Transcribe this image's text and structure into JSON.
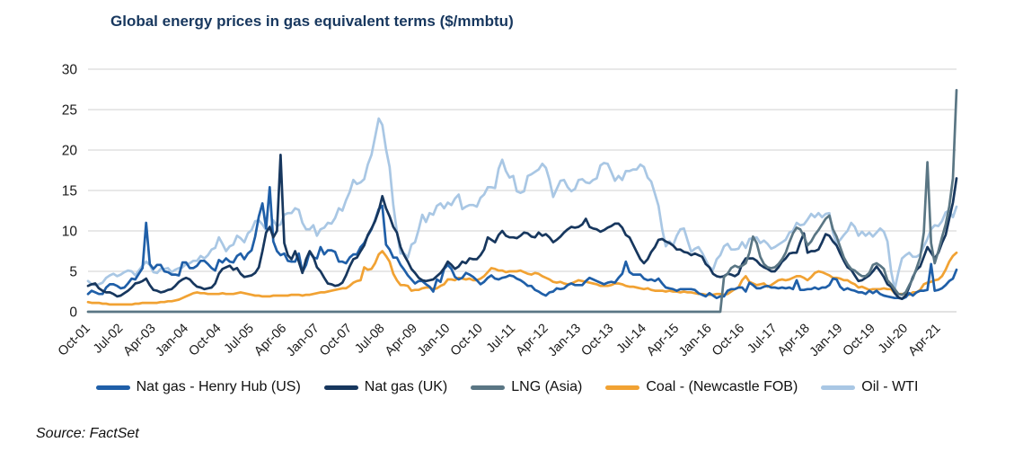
{
  "title": "Global energy prices in gas equivalent terms ($/mmbtu)",
  "source": "Source: FactSet",
  "colors": {
    "title": "#17375e",
    "gridline": "#d9d9d9",
    "axis_text": "#1a1a1a"
  },
  "chart_data": {
    "type": "line",
    "title": "Global energy prices in gas equivalent terms ($/mmbtu)",
    "xlabel": "",
    "ylabel": "",
    "ylim": [
      0,
      30
    ],
    "yticks": [
      0,
      5,
      10,
      15,
      20,
      25,
      30
    ],
    "grid": true,
    "legend_position": "bottom",
    "x_start_month": "2001-10",
    "x_frequency": "monthly",
    "x_tick_labels": [
      "Oct-01",
      "Jul-02",
      "Apr-03",
      "Jan-04",
      "Oct-04",
      "Jul-05",
      "Apr-06",
      "Jan-07",
      "Oct-07",
      "Jul-08",
      "Apr-09",
      "Jan-10",
      "Oct-10",
      "Jul-11",
      "Apr-12",
      "Jan-13",
      "Oct-13",
      "Jul-14",
      "Apr-15",
      "Jan-16",
      "Oct-16",
      "Jul-17",
      "Apr-18",
      "Jan-19",
      "Oct-19",
      "Jul-20",
      "Apr-21"
    ],
    "x_tick_every": 9,
    "series": [
      {
        "name": "Nat gas - Henry Hub (US)",
        "color": "#1f5fa8",
        "values": [
          2.2,
          2.6,
          2.4,
          2.2,
          2.2,
          3.0,
          3.4,
          3.4,
          3.2,
          2.9,
          3.0,
          3.5,
          4.1,
          4.0,
          4.7,
          5.4,
          11.0,
          5.9,
          5.3,
          5.8,
          5.8,
          5.0,
          4.9,
          4.6,
          4.6,
          4.5,
          6.1,
          6.1,
          5.4,
          5.4,
          5.7,
          6.3,
          6.3,
          5.9,
          5.4,
          5.1,
          6.4,
          6.1,
          6.6,
          6.2,
          6.1,
          6.9,
          7.2,
          6.5,
          7.2,
          7.6,
          9.3,
          11.8,
          13.4,
          10.3,
          15.4,
          8.7,
          7.5,
          7.0,
          7.2,
          6.3,
          6.2,
          6.2,
          7.2,
          4.9,
          5.8,
          7.4,
          6.7,
          6.6,
          8.0,
          7.1,
          7.6,
          7.6,
          7.4,
          6.2,
          6.2,
          6.0,
          6.7,
          7.1,
          7.1,
          8.0,
          8.5,
          9.4,
          10.2,
          11.3,
          12.7,
          13.1,
          8.3,
          7.7,
          6.7,
          6.7,
          5.8,
          5.2,
          4.5,
          4.0,
          3.5,
          3.8,
          3.8,
          3.4,
          3.1,
          2.5,
          4.0,
          3.7,
          5.3,
          5.8,
          5.3,
          4.3,
          4.0,
          4.2,
          4.8,
          4.6,
          4.3,
          3.9,
          3.4,
          3.7,
          4.2,
          4.5,
          4.1,
          4.0,
          4.2,
          4.3,
          4.5,
          4.4,
          4.1,
          3.9,
          3.6,
          3.2,
          3.2,
          2.7,
          2.5,
          2.2,
          2.0,
          2.4,
          2.5,
          2.9,
          2.8,
          2.9,
          3.3,
          3.5,
          3.3,
          3.3,
          3.3,
          3.8,
          4.2,
          4.0,
          3.8,
          3.6,
          3.4,
          3.6,
          3.7,
          3.6,
          4.2,
          4.7,
          6.2,
          4.9,
          4.6,
          4.6,
          4.6,
          4.1,
          3.9,
          4.0,
          3.8,
          4.1,
          3.5,
          3.0,
          2.9,
          2.8,
          2.6,
          2.8,
          2.8,
          2.8,
          2.8,
          2.7,
          2.3,
          2.1,
          1.9,
          2.3,
          2.0,
          1.7,
          1.9,
          1.9,
          2.6,
          2.8,
          2.8,
          3.0,
          3.0,
          2.5,
          3.6,
          3.3,
          2.9,
          2.9,
          3.1,
          3.2,
          3.0,
          3.0,
          2.9,
          3.0,
          2.9,
          3.0,
          2.8,
          3.9,
          2.7,
          2.7,
          2.8,
          2.8,
          3.0,
          2.8,
          3.0,
          3.0,
          3.3,
          4.1,
          4.0,
          3.1,
          2.7,
          2.9,
          2.7,
          2.6,
          2.4,
          2.4,
          2.2,
          2.6,
          2.3,
          2.6,
          2.2,
          2.0,
          1.9,
          1.8,
          1.7,
          1.7,
          1.6,
          1.8,
          2.3,
          2.0,
          2.4,
          2.6,
          2.6,
          2.7,
          5.9,
          2.6,
          2.7,
          2.9,
          3.3,
          3.8,
          4.1,
          5.2
        ]
      },
      {
        "name": "Nat gas (UK)",
        "color": "#17375e",
        "values": [
          3.2,
          3.4,
          3.5,
          2.9,
          2.6,
          2.4,
          2.4,
          2.2,
          1.9,
          2.0,
          2.3,
          2.6,
          3.0,
          3.5,
          3.6,
          3.8,
          4.1,
          3.3,
          2.7,
          2.6,
          2.4,
          2.5,
          2.7,
          2.8,
          3.2,
          3.7,
          4.0,
          4.2,
          4.0,
          3.5,
          3.1,
          3.0,
          2.8,
          2.9,
          3.0,
          3.5,
          4.7,
          5.3,
          5.5,
          5.7,
          5.2,
          5.4,
          4.7,
          4.3,
          4.4,
          4.5,
          4.8,
          5.5,
          7.5,
          9.8,
          10.5,
          9.2,
          10.0,
          19.4,
          8.5,
          7.0,
          6.5,
          7.5,
          6.2,
          4.8,
          6.5,
          7.5,
          6.8,
          5.5,
          5.0,
          4.2,
          3.5,
          3.4,
          3.2,
          3.3,
          3.6,
          4.5,
          5.6,
          6.5,
          6.7,
          7.5,
          8.2,
          9.5,
          10.3,
          11.2,
          12.5,
          14.3,
          12.8,
          11.8,
          10.5,
          9.8,
          8.0,
          7.0,
          6.2,
          5.3,
          4.8,
          4.2,
          3.9,
          3.8,
          3.9,
          4.0,
          4.4,
          4.8,
          5.4,
          6.2,
          5.8,
          5.3,
          5.6,
          6.2,
          6.0,
          6.6,
          6.5,
          6.5,
          7.0,
          7.7,
          9.2,
          8.9,
          8.6,
          9.5,
          10.0,
          9.4,
          9.2,
          9.2,
          9.1,
          9.4,
          9.8,
          9.7,
          9.3,
          9.2,
          9.8,
          9.4,
          9.6,
          9.2,
          8.6,
          8.9,
          9.3,
          9.8,
          10.2,
          10.5,
          10.4,
          10.5,
          10.8,
          11.5,
          10.5,
          10.3,
          10.2,
          9.9,
          10.1,
          10.4,
          10.6,
          10.9,
          10.9,
          10.4,
          9.5,
          9.2,
          8.3,
          7.4,
          6.5,
          6.0,
          6.5,
          7.4,
          8.0,
          8.9,
          9.0,
          8.7,
          8.5,
          8.2,
          7.7,
          7.7,
          7.4,
          7.3,
          7.0,
          7.2,
          7.0,
          6.8,
          5.9,
          5.5,
          4.7,
          4.4,
          4.3,
          4.4,
          4.7,
          4.6,
          4.4,
          4.7,
          5.9,
          6.6,
          6.6,
          6.6,
          6.3,
          5.8,
          5.5,
          5.3,
          5.0,
          5.0,
          5.5,
          6.2,
          6.6,
          7.2,
          7.3,
          7.3,
          8.6,
          9.7,
          7.3,
          7.5,
          7.5,
          7.7,
          8.6,
          9.6,
          9.4,
          8.7,
          8.2,
          7.2,
          6.3,
          5.5,
          5.2,
          4.5,
          3.8,
          3.9,
          4.2,
          4.5,
          5.0,
          5.6,
          5.0,
          4.3,
          3.4,
          3.1,
          2.3,
          1.8,
          1.6,
          2.0,
          3.1,
          4.3,
          5.2,
          5.6,
          6.8,
          8.0,
          7.3,
          6.6,
          7.3,
          8.5,
          9.5,
          11.5,
          13.5,
          16.5
        ]
      },
      {
        "name": "LNG (Asia)",
        "color": "#5a7684",
        "values": [
          0,
          0,
          0,
          0,
          0,
          0,
          0,
          0,
          0,
          0,
          0,
          0,
          0,
          0,
          0,
          0,
          0,
          0,
          0,
          0,
          0,
          0,
          0,
          0,
          0,
          0,
          0,
          0,
          0,
          0,
          0,
          0,
          0,
          0,
          0,
          0,
          0,
          0,
          0,
          0,
          0,
          0,
          0,
          0,
          0,
          0,
          0,
          0,
          0,
          0,
          0,
          0,
          0,
          0,
          0,
          0,
          0,
          0,
          0,
          0,
          0,
          0,
          0,
          0,
          0,
          0,
          0,
          0,
          0,
          0,
          0,
          0,
          0,
          0,
          0,
          0,
          0,
          0,
          0,
          0,
          0,
          0,
          0,
          0,
          0,
          0,
          0,
          0,
          0,
          0,
          0,
          0,
          0,
          0,
          0,
          0,
          0,
          0,
          0,
          0,
          0,
          0,
          0,
          0,
          0,
          0,
          0,
          0,
          0,
          0,
          0,
          0,
          0,
          0,
          0,
          0,
          0,
          0,
          0,
          0,
          0,
          0,
          0,
          0,
          0,
          0,
          0,
          0,
          0,
          0,
          0,
          0,
          0,
          0,
          0,
          0,
          0,
          0,
          0,
          0,
          0,
          0,
          0,
          0,
          0,
          0,
          0,
          0,
          0,
          0,
          0,
          0,
          0,
          0,
          0,
          0,
          0,
          0,
          0,
          0,
          0,
          0,
          0,
          0,
          0,
          0,
          0,
          0,
          0,
          0,
          0,
          0,
          0,
          0,
          0,
          4.3,
          4.7,
          5.4,
          5.7,
          5.5,
          5.7,
          6.0,
          7.3,
          9.3,
          8.5,
          6.8,
          5.9,
          5.5,
          5.4,
          5.5,
          5.9,
          6.5,
          7.3,
          8.6,
          9.7,
          10.4,
          10.2,
          9.3,
          8.2,
          8.7,
          9.5,
          10.1,
          10.8,
          11.5,
          11.9,
          10.2,
          9.3,
          8.0,
          6.7,
          5.9,
          5.3,
          5.1,
          4.7,
          4.4,
          4.4,
          4.8,
          5.8,
          6.0,
          5.7,
          5.3,
          3.9,
          3.4,
          2.8,
          2.2,
          2.1,
          2.4,
          3.3,
          4.1,
          5.4,
          6.7,
          9.8,
          18.5,
          8.5,
          6.0,
          7.5,
          9.2,
          10.8,
          13.0,
          16.5,
          27.4
        ]
      },
      {
        "name": "Coal - (Newcastle FOB)",
        "color": "#f1a233",
        "values": [
          1.2,
          1.1,
          1.1,
          1.1,
          1.0,
          1.0,
          0.9,
          0.9,
          0.9,
          0.9,
          0.9,
          0.9,
          0.9,
          1.0,
          1.0,
          1.1,
          1.1,
          1.1,
          1.1,
          1.1,
          1.2,
          1.2,
          1.3,
          1.3,
          1.4,
          1.5,
          1.7,
          1.9,
          2.1,
          2.3,
          2.4,
          2.3,
          2.3,
          2.2,
          2.2,
          2.2,
          2.2,
          2.3,
          2.2,
          2.2,
          2.2,
          2.3,
          2.4,
          2.3,
          2.2,
          2.1,
          2.0,
          2.0,
          1.9,
          1.9,
          1.9,
          2.0,
          2.0,
          2.0,
          2.0,
          2.0,
          2.1,
          2.1,
          2.1,
          2.0,
          2.1,
          2.1,
          2.2,
          2.3,
          2.4,
          2.4,
          2.5,
          2.6,
          2.7,
          2.8,
          2.9,
          2.9,
          3.2,
          3.6,
          3.8,
          3.9,
          5.5,
          5.2,
          5.3,
          6.0,
          7.1,
          7.5,
          6.9,
          6.2,
          4.7,
          3.9,
          3.3,
          3.3,
          3.2,
          2.6,
          2.7,
          2.7,
          2.9,
          3.0,
          3.0,
          2.8,
          2.9,
          3.2,
          3.4,
          4.0,
          4.0,
          3.9,
          4.2,
          4.1,
          4.0,
          4.1,
          3.9,
          3.9,
          4.1,
          4.4,
          4.9,
          5.4,
          5.3,
          5.1,
          5.1,
          4.9,
          5.0,
          5.0,
          5.0,
          5.1,
          4.9,
          4.7,
          4.6,
          4.8,
          4.7,
          4.4,
          4.2,
          4.0,
          3.7,
          3.6,
          3.7,
          3.5,
          3.4,
          3.5,
          3.7,
          3.9,
          3.8,
          3.7,
          3.6,
          3.5,
          3.4,
          3.2,
          3.2,
          3.2,
          3.3,
          3.5,
          3.5,
          3.4,
          3.2,
          3.1,
          3.1,
          3.0,
          2.9,
          2.8,
          2.9,
          2.7,
          2.6,
          2.6,
          2.6,
          2.5,
          2.6,
          2.5,
          2.5,
          2.4,
          2.5,
          2.4,
          2.4,
          2.3,
          2.2,
          2.2,
          2.1,
          2.1,
          2.1,
          2.2,
          2.2,
          2.1,
          2.2,
          2.5,
          2.8,
          3.0,
          3.9,
          4.4,
          3.7,
          3.5,
          3.3,
          3.4,
          3.5,
          3.1,
          3.3,
          3.6,
          3.9,
          4.0,
          3.9,
          4.0,
          4.2,
          4.4,
          4.4,
          4.2,
          3.9,
          4.3,
          4.8,
          5.0,
          4.9,
          4.7,
          4.5,
          4.2,
          4.2,
          4.1,
          3.9,
          3.9,
          3.6,
          3.4,
          3.0,
          3.1,
          2.9,
          2.7,
          2.8,
          2.8,
          2.8,
          2.9,
          2.8,
          2.8,
          2.3,
          2.2,
          2.2,
          2.2,
          2.1,
          2.4,
          2.4,
          2.7,
          3.4,
          3.6,
          3.7,
          3.9,
          4.0,
          4.4,
          5.2,
          6.2,
          6.9,
          7.3
        ]
      },
      {
        "name": "Oil - WTI",
        "color": "#a9c7e4",
        "values": [
          3.8,
          3.4,
          3.3,
          3.4,
          3.6,
          4.2,
          4.5,
          4.7,
          4.4,
          4.6,
          4.9,
          5.1,
          5.0,
          4.5,
          5.1,
          5.7,
          6.2,
          5.8,
          4.9,
          4.8,
          5.3,
          5.3,
          5.4,
          4.9,
          5.2,
          5.4,
          5.5,
          5.9,
          6.0,
          6.3,
          6.3,
          6.9,
          6.6,
          7.0,
          7.7,
          7.9,
          9.2,
          8.4,
          7.5,
          8.1,
          8.3,
          9.4,
          9.1,
          8.6,
          9.7,
          10.1,
          11.2,
          11.3,
          10.8,
          10.1,
          10.2,
          11.3,
          10.6,
          10.8,
          12.0,
          12.2,
          12.2,
          12.8,
          12.6,
          11.0,
          10.2,
          10.2,
          10.7,
          9.4,
          10.2,
          10.4,
          11.0,
          10.9,
          11.6,
          12.8,
          12.5,
          13.8,
          14.8,
          16.3,
          15.8,
          16.0,
          16.4,
          18.2,
          19.4,
          21.6,
          23.9,
          23.1,
          20.1,
          17.9,
          13.2,
          9.9,
          7.2,
          7.2,
          6.7,
          8.3,
          8.6,
          10.2,
          12.0,
          11.1,
          12.2,
          12.0,
          13.1,
          13.4,
          12.8,
          13.5,
          13.2,
          14.0,
          14.5,
          12.7,
          13.0,
          13.2,
          13.2,
          13.0,
          14.1,
          14.5,
          15.4,
          15.4,
          15.3,
          17.7,
          18.8,
          17.4,
          16.6,
          16.8,
          14.9,
          14.7,
          14.9,
          16.8,
          17.0,
          17.3,
          17.6,
          18.3,
          17.8,
          16.3,
          14.2,
          15.2,
          16.2,
          16.3,
          15.4,
          14.9,
          15.2,
          16.3,
          16.4,
          16.0,
          15.9,
          16.3,
          16.5,
          18.1,
          18.4,
          18.3,
          17.3,
          16.2,
          16.8,
          16.3,
          17.4,
          17.4,
          17.6,
          17.6,
          18.2,
          17.9,
          16.6,
          16.1,
          14.6,
          13.1,
          10.2,
          8.1,
          8.7,
          8.2,
          9.4,
          10.2,
          10.3,
          8.8,
          7.4,
          7.8,
          8.0,
          7.3,
          6.4,
          5.5,
          5.2,
          6.5,
          7.0,
          8.1,
          8.4,
          7.7,
          7.7,
          7.8,
          8.6,
          7.9,
          9.0,
          9.1,
          9.2,
          8.5,
          8.8,
          8.4,
          7.8,
          8.0,
          8.3,
          8.6,
          8.9,
          9.8,
          10.0,
          11.0,
          10.7,
          10.8,
          11.4,
          12.1,
          11.7,
          12.2,
          11.7,
          12.1,
          12.2,
          9.8,
          8.4,
          8.9,
          9.5,
          10.0,
          11.0,
          10.5,
          9.4,
          9.9,
          9.4,
          9.8,
          9.3,
          9.8,
          10.3,
          9.9,
          8.7,
          5.0,
          2.8,
          4.9,
          6.6,
          7.0,
          7.3,
          6.8,
          6.8,
          7.1,
          8.1,
          9.0,
          10.2,
          10.7,
          10.6,
          11.2,
          12.3,
          12.5,
          11.7,
          13.0
        ]
      }
    ],
    "draw_order": [
      4,
      3,
      0,
      1,
      2
    ]
  }
}
